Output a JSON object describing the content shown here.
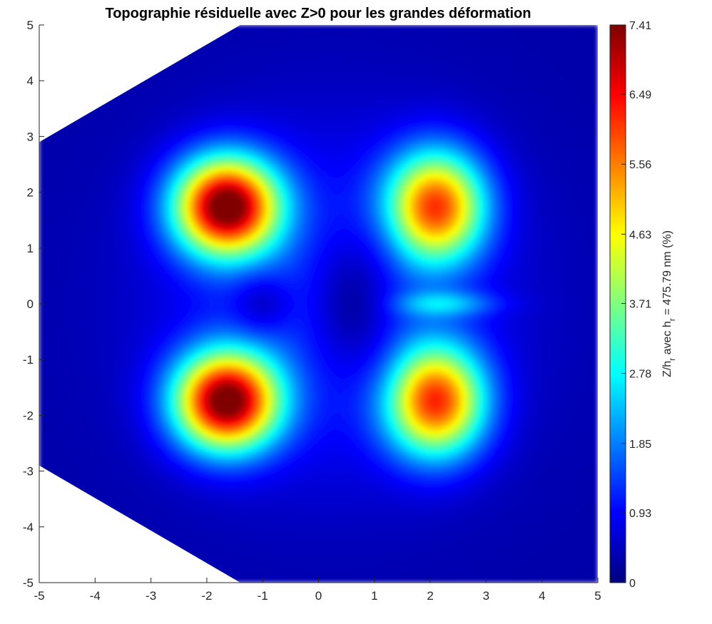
{
  "chart_data": {
    "type": "heatmap",
    "title": "Topographie résiduelle avec Z>0 pour les grandes déformation",
    "xlabel": "",
    "ylabel": "",
    "xlim": [
      -5,
      5
    ],
    "ylim": [
      -5,
      5
    ],
    "x_ticks": [
      "-5",
      "-4",
      "-3",
      "-2",
      "-1",
      "0",
      "1",
      "2",
      "3",
      "4",
      "5"
    ],
    "y_ticks": [
      "5",
      "4",
      "3",
      "2",
      "1",
      "0",
      "-1",
      "-2",
      "-3",
      "-4",
      "-5"
    ],
    "colorbar": {
      "colormap": "jet",
      "range": [
        0,
        7.41
      ],
      "ticks": [
        "7.41",
        "6.49",
        "5.56",
        "4.63",
        "3.71",
        "2.78",
        "1.85",
        "0.93",
        "0"
      ],
      "label_main": "Z/h",
      "label_sub1": "r",
      "label_mid": " avec h",
      "label_sub2": "r",
      "label_end": " = 475.79 nm (%)"
    },
    "grid": false,
    "clip_polygon_data": [
      [
        -5,
        2.9
      ],
      [
        -1.4,
        5
      ],
      [
        5,
        5
      ],
      [
        5,
        -5
      ],
      [
        -1.4,
        -5
      ],
      [
        -5,
        -2.9
      ]
    ],
    "peaks": [
      {
        "x": -1.6,
        "y": 1.75,
        "value": 7.41
      },
      {
        "x": -1.6,
        "y": -1.7,
        "value": 7.3
      },
      {
        "x": 2.05,
        "y": 1.75,
        "value": 5.6
      },
      {
        "x": 2.05,
        "y": -1.75,
        "value": 5.7
      }
    ],
    "hole": {
      "x": 0.6,
      "y": 0.2,
      "value": 0
    }
  }
}
